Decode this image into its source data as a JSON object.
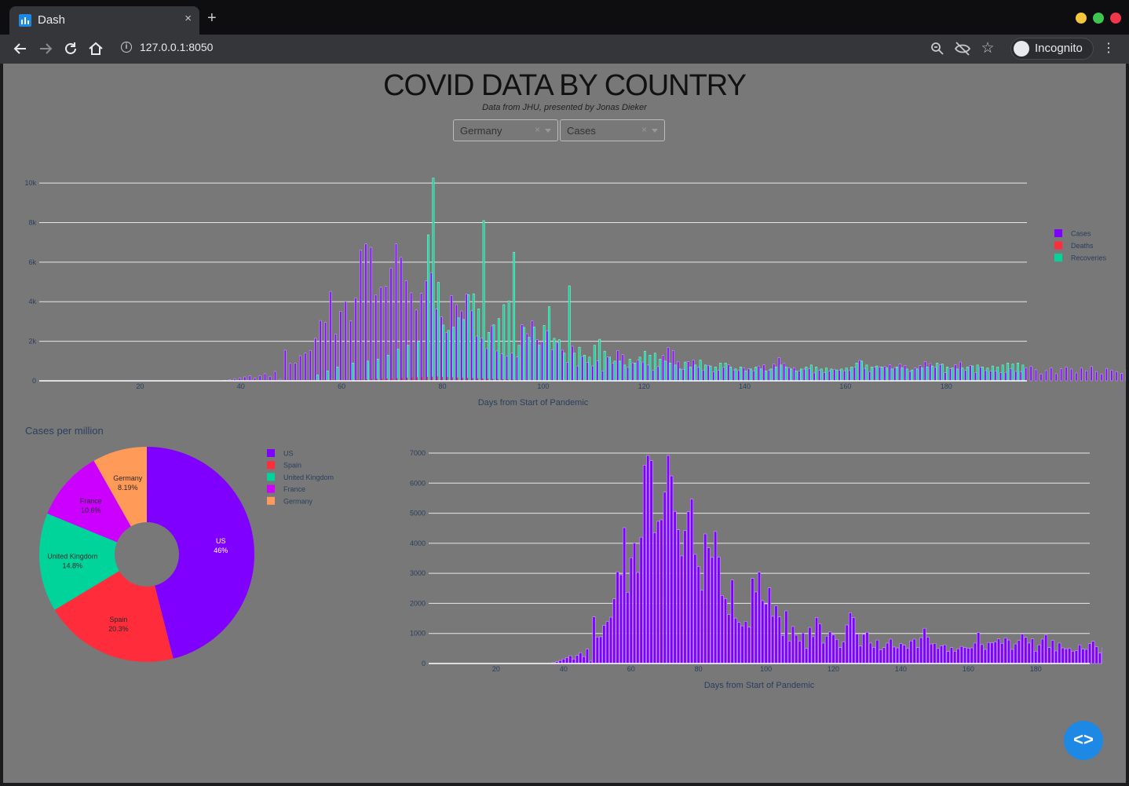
{
  "browser": {
    "tab_title": "Dash",
    "tab_close": "×",
    "new_tab": "+",
    "url": "127.0.0.1:8050",
    "incognito_label": "Incognito",
    "icons": [
      "back-icon",
      "forward-icon",
      "reload-icon",
      "home-icon",
      "info-icon",
      "zoom-icon",
      "eye-off-icon",
      "star-icon",
      "menu-icon"
    ]
  },
  "header": {
    "title": "COVID DATA BY COUNTRY",
    "subtitle": "Data from JHU, presented by Jonas Dieker"
  },
  "controls": {
    "country": {
      "value": "Germany",
      "clear": "×"
    },
    "metric": {
      "value": "Cases",
      "clear": "×"
    }
  },
  "colors": {
    "cases": "#7f00ff",
    "deaths": "#ff2d3c",
    "recoveries": "#00d49a",
    "france": "#cc00ff",
    "germany": "#ff9a59",
    "page_bg": "#787878",
    "axis_text": "#2a3f5f"
  },
  "chart_data": [
    {
      "id": "main_bar",
      "type": "bar",
      "xlabel": "Days from Start of Pandemic",
      "x_ticks": [
        20,
        40,
        60,
        80,
        100,
        120,
        140,
        160,
        180
      ],
      "y_ticks": [
        "0",
        "2k",
        "4k",
        "6k",
        "8k",
        "10k"
      ],
      "y_tick_values": [
        0,
        2000,
        4000,
        6000,
        8000,
        10000
      ],
      "xlim": [
        0,
        196
      ],
      "ylim": [
        0,
        10400
      ],
      "legend": [
        "Cases",
        "Deaths",
        "Recoveries"
      ],
      "legend_position": "top-right",
      "series": [
        {
          "name": "Cases",
          "start_day": 37,
          "values": [
            30,
            60,
            100,
            150,
            200,
            260,
            150,
            270,
            360,
            230,
            480,
            80,
            1550,
            880,
            890,
            1270,
            1400,
            1540,
            2150,
            3050,
            2950,
            4520,
            2370,
            3520,
            4000,
            3030,
            4200,
            6600,
            6920,
            6750,
            4350,
            4730,
            4780,
            5700,
            6920,
            6240,
            5060,
            4450,
            3580,
            4420,
            5050,
            5470,
            3630,
            3230,
            2440,
            4310,
            3850,
            3530,
            4390,
            3540,
            2260,
            2160,
            1630,
            2780,
            1510,
            1370,
            1250,
            1400,
            1210,
            2830,
            2380,
            3040,
            2090,
            1980,
            2520,
            1570,
            1920,
            1550,
            930,
            1750,
            750,
            1230,
            940,
            750,
            1010,
            500,
            1200,
            890,
            1530,
            1320,
            680,
            910,
            1050,
            950,
            800,
            530,
            720,
            1280,
            1690,
            1530,
            980,
            580,
            970,
            1040,
            680,
            540,
            780,
            460,
            530,
            680,
            810,
            550,
            520,
            660,
            610,
            510,
            750,
            810,
            530,
            860,
            1170,
            880,
            650,
            670,
            500,
            590,
            620,
            400,
            530,
            410,
            490,
            570,
            530,
            510,
            520,
            680,
            1030,
            630,
            470,
            700,
            690,
            720,
            820,
            670,
            850,
            780,
            470,
            650,
            770,
            980,
            870,
            680,
            820,
            410,
            620,
            810,
            950,
            530,
            770,
            420,
            680,
            520,
            490,
            500,
            410,
            430,
            620,
            480,
            470,
            660,
            740,
            560,
            350,
            520,
            660,
            360,
            610,
            700,
            600,
            400,
            660,
            510,
            720,
            470,
            350,
            630,
            540,
            470,
            370,
            570,
            390,
            410,
            450,
            650,
            680,
            780
          ]
        },
        {
          "name": "Deaths",
          "start_day": 52,
          "values": [
            2,
            3,
            5,
            8,
            10,
            15,
            20,
            25,
            30,
            40,
            50,
            60,
            70,
            80,
            90,
            100,
            110,
            120,
            130,
            140,
            150,
            160,
            170,
            180,
            190,
            200,
            210,
            220,
            200,
            190,
            180,
            170,
            160,
            150,
            140,
            130,
            120,
            110,
            100,
            90,
            80,
            70,
            60,
            50,
            40,
            30,
            25,
            20,
            15,
            10,
            8,
            5
          ]
        },
        {
          "name": "Recoveries",
          "start_day": 55,
          "values": [
            0,
            0,
            0,
            0,
            0,
            0,
            0,
            0,
            0,
            0,
            0,
            0,
            0,
            0,
            0,
            0,
            0,
            0,
            0,
            0,
            0,
            0,
            0,
            0,
            7300,
            10200,
            3360,
            4940,
            3100,
            1240,
            1680,
            2550,
            2920,
            4030,
            4360,
            2710,
            6120,
            1550,
            1510,
            3800,
            3280,
            4400,
            2500,
            3970,
            4930,
            0,
            0,
            0,
            0,
            0,
            0,
            0,
            0,
            0,
            0,
            0,
            0,
            0,
            0,
            0,
            0,
            0,
            0,
            0,
            0,
            0,
            0,
            0,
            0,
            0,
            0,
            0,
            0,
            0
          ]
        }
      ],
      "recoveries_day_values": [
        [
          55,
          300
        ],
        [
          57,
          500
        ],
        [
          59,
          700
        ],
        [
          62,
          900
        ],
        [
          65,
          1000
        ],
        [
          67,
          1100
        ],
        [
          69,
          1300
        ],
        [
          71,
          1600
        ],
        [
          73,
          1800
        ],
        [
          75,
          2000
        ],
        [
          77,
          7380
        ],
        [
          78,
          10250
        ],
        [
          79,
          4980
        ],
        [
          80,
          2820
        ],
        [
          81,
          2550
        ],
        [
          82,
          2720
        ],
        [
          83,
          3190
        ],
        [
          84,
          3100
        ],
        [
          85,
          4350
        ],
        [
          86,
          4400
        ],
        [
          87,
          3640
        ],
        [
          88,
          8100
        ],
        [
          89,
          2450
        ],
        [
          90,
          2830
        ],
        [
          91,
          3150
        ],
        [
          92,
          3850
        ],
        [
          93,
          4040
        ],
        [
          94,
          6500
        ],
        [
          95,
          1800
        ],
        [
          96,
          2700
        ],
        [
          97,
          2200
        ],
        [
          98,
          2720
        ],
        [
          99,
          1800
        ],
        [
          100,
          2800
        ],
        [
          101,
          3750
        ],
        [
          102,
          2150
        ],
        [
          103,
          2080
        ],
        [
          104,
          1400
        ],
        [
          105,
          4800
        ],
        [
          106,
          1400
        ],
        [
          107,
          1700
        ],
        [
          108,
          1300
        ],
        [
          109,
          1200
        ],
        [
          110,
          1800
        ],
        [
          111,
          2100
        ],
        [
          112,
          1500
        ],
        [
          113,
          1200
        ],
        [
          114,
          1000
        ],
        [
          115,
          1000
        ],
        [
          116,
          800
        ],
        [
          117,
          1100
        ],
        [
          118,
          900
        ],
        [
          119,
          1200
        ],
        [
          120,
          1500
        ],
        [
          121,
          1300
        ],
        [
          122,
          1400
        ],
        [
          123,
          1100
        ],
        [
          124,
          1000
        ],
        [
          125,
          900
        ],
        [
          126,
          800
        ],
        [
          127,
          600
        ],
        [
          128,
          950
        ],
        [
          129,
          700
        ],
        [
          130,
          800
        ],
        [
          131,
          1050
        ],
        [
          132,
          800
        ],
        [
          133,
          750
        ],
        [
          134,
          700
        ],
        [
          135,
          900
        ],
        [
          136,
          900
        ],
        [
          137,
          700
        ],
        [
          138,
          600
        ],
        [
          139,
          700
        ],
        [
          140,
          500
        ],
        [
          141,
          600
        ],
        [
          142,
          700
        ],
        [
          143,
          600
        ],
        [
          144,
          500
        ],
        [
          145,
          600
        ],
        [
          146,
          700
        ],
        [
          147,
          800
        ],
        [
          148,
          700
        ],
        [
          149,
          600
        ],
        [
          150,
          500
        ],
        [
          151,
          600
        ],
        [
          152,
          700
        ],
        [
          153,
          800
        ],
        [
          154,
          700
        ],
        [
          155,
          600
        ],
        [
          156,
          650
        ],
        [
          157,
          600
        ],
        [
          158,
          550
        ],
        [
          159,
          600
        ],
        [
          160,
          650
        ],
        [
          161,
          700
        ],
        [
          162,
          900
        ],
        [
          163,
          1000
        ],
        [
          164,
          800
        ],
        [
          165,
          700
        ],
        [
          166,
          750
        ],
        [
          167,
          700
        ],
        [
          168,
          650
        ],
        [
          169,
          600
        ],
        [
          170,
          700
        ],
        [
          171,
          650
        ],
        [
          172,
          600
        ],
        [
          173,
          550
        ],
        [
          174,
          600
        ],
        [
          175,
          650
        ],
        [
          176,
          700
        ],
        [
          177,
          750
        ],
        [
          178,
          900
        ],
        [
          179,
          850
        ],
        [
          180,
          700
        ],
        [
          181,
          650
        ],
        [
          182,
          600
        ],
        [
          183,
          650
        ],
        [
          184,
          700
        ],
        [
          185,
          750
        ],
        [
          186,
          800
        ],
        [
          187,
          700
        ],
        [
          188,
          650
        ],
        [
          189,
          750
        ],
        [
          190,
          700
        ],
        [
          191,
          800
        ],
        [
          192,
          900
        ],
        [
          193,
          850
        ],
        [
          194,
          900
        ],
        [
          195,
          800
        ]
      ]
    },
    {
      "id": "pie",
      "type": "pie",
      "title": "Cases per million",
      "hole": 0.3,
      "legend_position": "top-right",
      "labels": [
        "US",
        "Spain",
        "United Kingdom",
        "France",
        "Germany"
      ],
      "values": [
        46,
        20.3,
        14.8,
        10.6,
        8.19
      ],
      "text": [
        "46%",
        "20.3%",
        "14.8%",
        "10.6%",
        "8.19%"
      ]
    },
    {
      "id": "country_bar",
      "type": "bar",
      "xlabel": "Days from Start of Pandemic",
      "x_ticks": [
        20,
        40,
        60,
        80,
        100,
        120,
        140,
        160,
        180
      ],
      "y_ticks": [
        "0",
        "1000",
        "2000",
        "3000",
        "4000",
        "5000",
        "6000",
        "7000"
      ],
      "y_tick_values": [
        0,
        1000,
        2000,
        3000,
        4000,
        5000,
        6000,
        7000
      ],
      "xlim": [
        0,
        196
      ],
      "ylim": [
        0,
        7000
      ],
      "series": [
        {
          "name": "Cases",
          "start_day": 37,
          "values": [
            30,
            60,
            100,
            150,
            200,
            260,
            150,
            270,
            360,
            230,
            480,
            80,
            1550,
            880,
            890,
            1270,
            1400,
            1540,
            2150,
            3050,
            2950,
            4520,
            2370,
            3520,
            4000,
            3030,
            4200,
            6600,
            6920,
            6750,
            4350,
            4730,
            4780,
            5700,
            6920,
            6240,
            5060,
            4450,
            3580,
            4420,
            5050,
            5470,
            3630,
            3230,
            2440,
            4310,
            3850,
            3530,
            4390,
            3540,
            2260,
            2160,
            1630,
            2780,
            1510,
            1370,
            1250,
            1400,
            1210,
            2830,
            2380,
            3040,
            2090,
            1980,
            2520,
            1570,
            1920,
            1550,
            930,
            1750,
            750,
            1230,
            940,
            750,
            1010,
            500,
            1200,
            890,
            1530,
            1320,
            680,
            910,
            1050,
            950,
            800,
            530,
            720,
            1280,
            1690,
            1530,
            980,
            580,
            970,
            1040,
            680,
            540,
            780,
            460,
            530,
            680,
            810,
            550,
            520,
            660,
            610,
            510,
            750,
            810,
            530,
            860,
            1170,
            880,
            650,
            670,
            500,
            590,
            620,
            400,
            530,
            410,
            490,
            570,
            530,
            510,
            520,
            680,
            1030,
            630,
            470,
            700,
            690,
            720,
            820,
            670,
            850,
            780,
            470,
            650,
            770,
            980,
            870,
            680,
            820,
            410,
            620,
            810,
            950,
            530,
            770,
            420,
            680,
            520,
            490,
            500,
            410,
            430,
            620,
            480,
            470,
            660,
            740,
            560,
            350,
            520,
            660,
            360,
            610,
            700,
            600,
            400,
            660,
            510,
            720,
            470,
            350,
            630,
            540,
            470,
            370,
            570,
            390,
            410,
            450,
            650,
            680,
            780
          ]
        }
      ]
    }
  ]
}
